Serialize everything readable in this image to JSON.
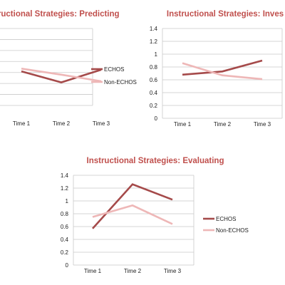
{
  "colors": {
    "echos": "#a54a4a",
    "non_echos": "#eeb7b7",
    "grid": "#c9c9c9",
    "title": "#c0504d"
  },
  "chart_data": [
    {
      "type": "line",
      "title": "Instructional Strategies: Predicting",
      "categories": [
        "Time 1",
        "Time 2",
        "Time 3"
      ],
      "ylim": [
        0,
        1.4
      ],
      "y_ticks": [],
      "grid": true,
      "legend": "right",
      "series": [
        {
          "name": "ECHOS",
          "values": [
            0.62,
            0.42,
            0.65
          ]
        },
        {
          "name": "Non-ECHOS",
          "values": [
            0.67,
            0.56,
            0.44
          ]
        }
      ]
    },
    {
      "type": "line",
      "title": "Instructional Strategies: Inves",
      "categories": [
        "Time 1",
        "Time 2",
        "Time 3"
      ],
      "ylim": [
        0,
        1.4
      ],
      "y_ticks": [
        "0",
        "0.2",
        "0.4",
        "0.6",
        "0.8",
        "1",
        "1.2",
        "1.4"
      ],
      "grid": true,
      "legend": "none",
      "series": [
        {
          "name": "ECHOS",
          "values": [
            0.68,
            0.73,
            0.9
          ]
        },
        {
          "name": "Non-ECHOS",
          "values": [
            0.86,
            0.67,
            0.61
          ]
        }
      ]
    },
    {
      "type": "line",
      "title": "Instructional Strategies: Evaluating",
      "categories": [
        "Time 1",
        "Time 2",
        "Time 3"
      ],
      "ylim": [
        0,
        1.4
      ],
      "y_ticks": [
        "0",
        "0.2",
        "0.4",
        "0.6",
        "0.8",
        "1",
        "1.2",
        "1.4"
      ],
      "grid": true,
      "legend": "right",
      "series": [
        {
          "name": "ECHOS",
          "values": [
            0.57,
            1.26,
            1.02
          ]
        },
        {
          "name": "Non-ECHOS",
          "values": [
            0.75,
            0.93,
            0.64
          ]
        }
      ]
    }
  ]
}
